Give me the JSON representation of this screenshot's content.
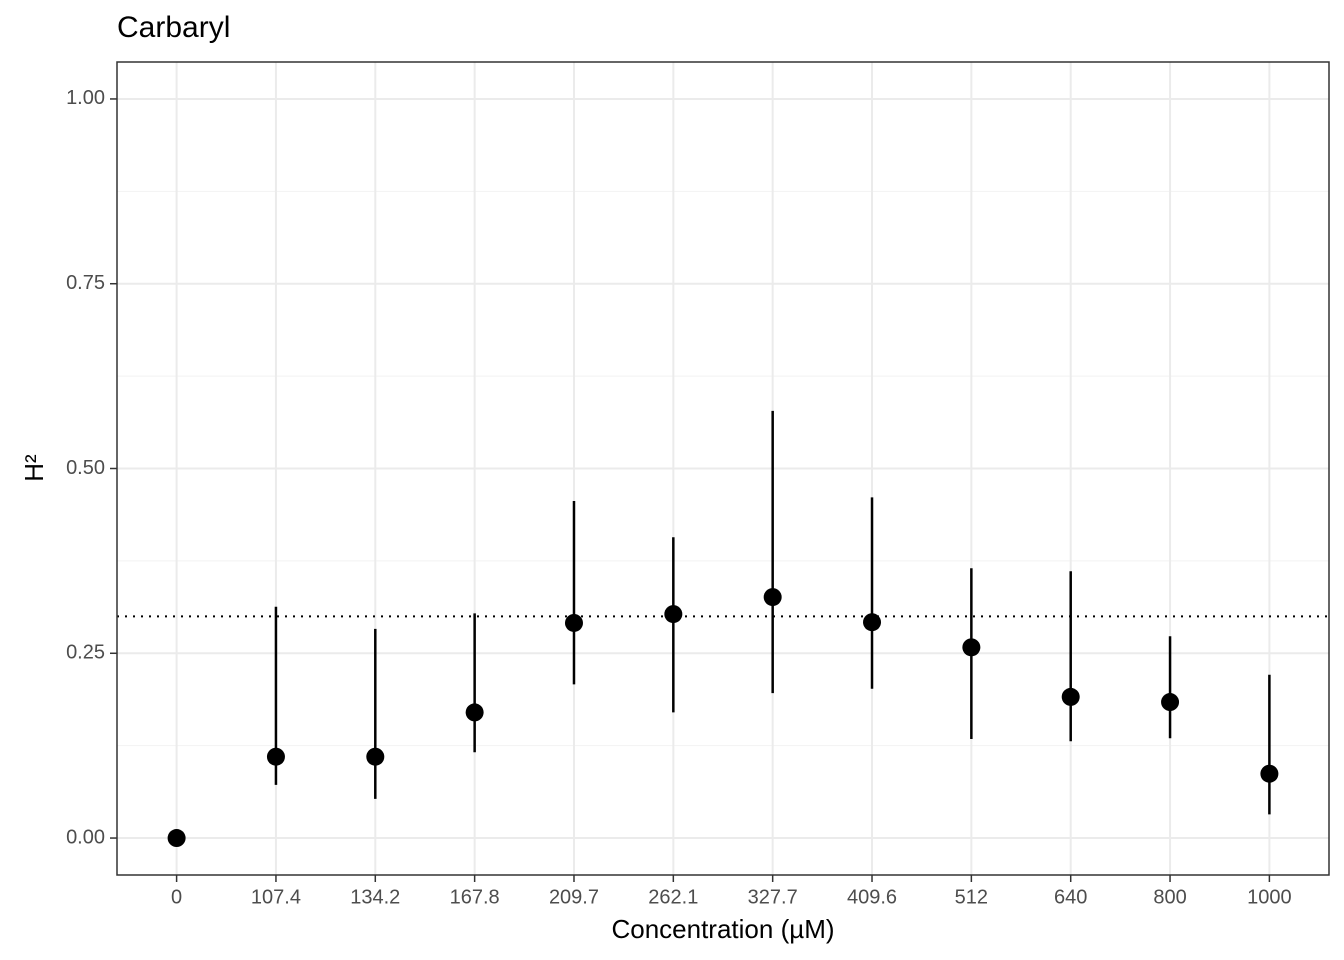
{
  "chart_data": {
    "type": "pointrange",
    "title": "Carbaryl",
    "x_label": "Concentration (µM)",
    "y_label": "H²",
    "categories": [
      "0",
      "107.4",
      "134.2",
      "167.8",
      "209.7",
      "262.1",
      "327.7",
      "409.6",
      "512",
      "640",
      "800",
      "1000"
    ],
    "values": [
      0,
      0.11,
      0.11,
      0.17,
      0.291,
      0.303,
      0.326,
      0.292,
      0.258,
      0.191,
      0.184,
      0.087
    ],
    "lower": [
      null,
      0.072,
      0.053,
      0.116,
      0.208,
      0.17,
      0.196,
      0.202,
      0.134,
      0.131,
      0.135,
      0.032
    ],
    "upper": [
      null,
      0.313,
      0.283,
      0.304,
      0.456,
      0.407,
      0.578,
      0.461,
      0.365,
      0.361,
      0.273,
      0.221
    ],
    "color": "#000000",
    "reference_line": 0.3,
    "ylim": [
      -0.05,
      1.05
    ],
    "yticks": [
      {
        "value": 0,
        "label": "0.00"
      },
      {
        "value": 0.25,
        "label": "0.25"
      },
      {
        "value": 0.5,
        "label": "0.50"
      },
      {
        "value": 0.75,
        "label": "0.75"
      },
      {
        "value": 1,
        "label": "1.00"
      }
    ],
    "minor_yticks": [
      0.125,
      0.375,
      0.625,
      0.875
    ],
    "grid": true
  }
}
